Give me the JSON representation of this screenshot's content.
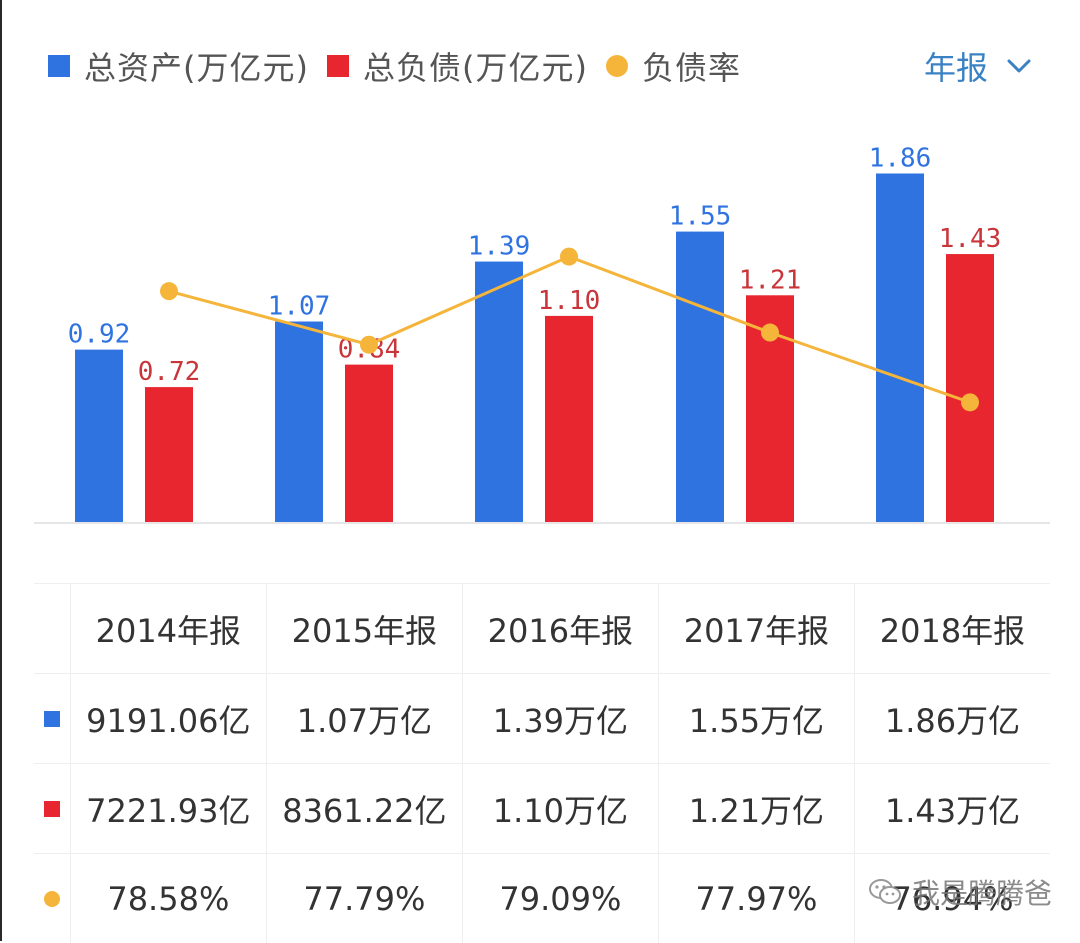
{
  "legend": [
    {
      "label": "总资产(万亿元)",
      "color": "#2f73e0",
      "shape": "square"
    },
    {
      "label": "总负债(万亿元)",
      "color": "#e8262f",
      "shape": "square"
    },
    {
      "label": "负债率",
      "color": "#f4b53a",
      "shape": "circle"
    }
  ],
  "period_selector": {
    "label": "年报",
    "icon": "chevron-down-icon"
  },
  "chart_data": {
    "type": "bar",
    "categories": [
      "2014年报",
      "2015年报",
      "2016年报",
      "2017年报",
      "2018年报"
    ],
    "series": [
      {
        "name": "总资产(万亿元)",
        "values": [
          0.92,
          1.07,
          1.39,
          1.55,
          1.86
        ],
        "labels": [
          "0.92",
          "1.07",
          "1.39",
          "1.55",
          "1.86"
        ],
        "color": "#2f73e0",
        "label_color": "#2f73e0"
      },
      {
        "name": "总负债(万亿元)",
        "values": [
          0.72,
          0.84,
          1.1,
          1.21,
          1.43
        ],
        "labels": [
          "0.72",
          "0.84",
          "1.10",
          "1.21",
          "1.43"
        ],
        "color": "#e8262f",
        "label_color": "#c8353b"
      },
      {
        "name": "负债率",
        "type": "line",
        "values": [
          78.58,
          77.79,
          79.09,
          77.97,
          76.94
        ],
        "color": "#f4b53a"
      }
    ],
    "ylim": [
      0,
      1.9
    ],
    "rate_ylim": [
      75.5,
      79.6
    ],
    "grid": false,
    "legend_position": "top-left"
  },
  "table": {
    "headers": [
      "2014年报",
      "2015年报",
      "2016年报",
      "2017年报",
      "2018年报"
    ],
    "rows": [
      {
        "marker_color": "#2f73e0",
        "marker_shape": "square",
        "cells": [
          "9191.06亿",
          "1.07万亿",
          "1.39万亿",
          "1.55万亿",
          "1.86万亿"
        ]
      },
      {
        "marker_color": "#e8262f",
        "marker_shape": "square",
        "cells": [
          "7221.93亿",
          "8361.22亿",
          "1.10万亿",
          "1.21万亿",
          "1.43万亿"
        ]
      },
      {
        "marker_color": "#f4b53a",
        "marker_shape": "circle",
        "cells": [
          "78.58%",
          "77.79%",
          "79.09%",
          "77.97%",
          "76.94%"
        ]
      }
    ]
  },
  "watermark": {
    "text": "我是腾腾爸",
    "icon": "wechat-icon"
  }
}
